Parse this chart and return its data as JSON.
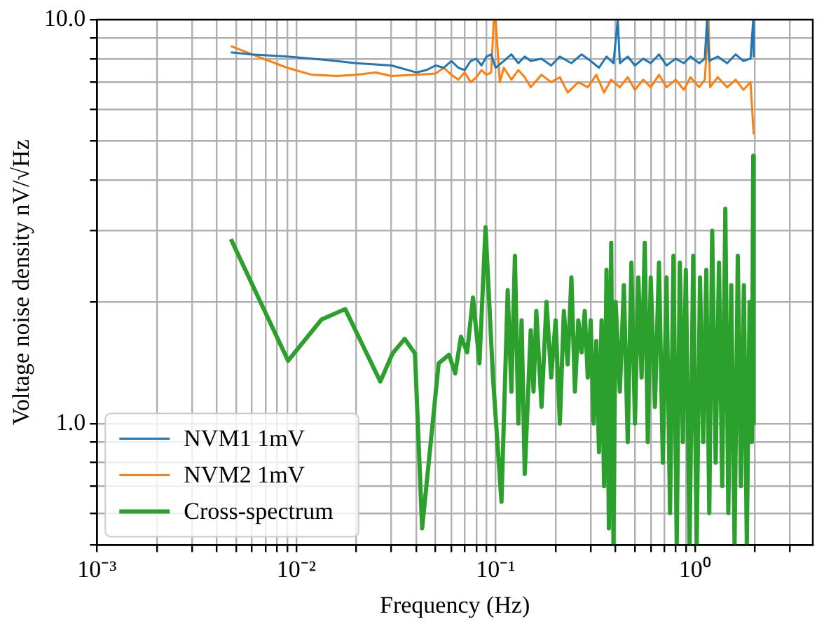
{
  "chart_data": {
    "type": "line",
    "xlabel": "Frequency (Hz)",
    "ylabel": "Voltage noise density nV/√Hz",
    "log": "xy",
    "grid": true,
    "legend": "bottom left",
    "marker": "none",
    "line_style": "solid",
    "xlim": [
      0.001,
      3.9
    ],
    "ylim": [
      0.5,
      10
    ],
    "xticks": [
      {
        "value": 0.001,
        "label": "10⁻³"
      },
      {
        "value": 0.002,
        "label": null
      },
      {
        "value": 0.003,
        "label": null
      },
      {
        "value": 0.004,
        "label": null
      },
      {
        "value": 0.005,
        "label": null
      },
      {
        "value": 0.006,
        "label": null
      },
      {
        "value": 0.007,
        "label": null
      },
      {
        "value": 0.008,
        "label": null
      },
      {
        "value": 0.009,
        "label": null
      },
      {
        "value": 0.01,
        "label": "10⁻²"
      },
      {
        "value": 0.02,
        "label": null
      },
      {
        "value": 0.03,
        "label": null
      },
      {
        "value": 0.04,
        "label": null
      },
      {
        "value": 0.05,
        "label": null
      },
      {
        "value": 0.06,
        "label": null
      },
      {
        "value": 0.07,
        "label": null
      },
      {
        "value": 0.08,
        "label": null
      },
      {
        "value": 0.09,
        "label": null
      },
      {
        "value": 0.1,
        "label": "10⁻¹"
      },
      {
        "value": 0.2,
        "label": null
      },
      {
        "value": 0.3,
        "label": null
      },
      {
        "value": 0.4,
        "label": null
      },
      {
        "value": 0.5,
        "label": null
      },
      {
        "value": 0.6,
        "label": null
      },
      {
        "value": 0.7,
        "label": null
      },
      {
        "value": 0.8,
        "label": null
      },
      {
        "value": 0.9,
        "label": null
      },
      {
        "value": 1,
        "label": "10⁰"
      },
      {
        "value": 2,
        "label": null
      },
      {
        "value": 3,
        "label": null
      }
    ],
    "yticks": [
      {
        "value": 0.5,
        "label": null
      },
      {
        "value": 0.6,
        "label": null
      },
      {
        "value": 0.7,
        "label": null
      },
      {
        "value": 0.8,
        "label": null
      },
      {
        "value": 0.9,
        "label": null
      },
      {
        "value": 1,
        "label": "1.0"
      },
      {
        "value": 2,
        "label": null
      },
      {
        "value": 3,
        "label": null
      },
      {
        "value": 4,
        "label": null
      },
      {
        "value": 5,
        "label": null
      },
      {
        "value": 6,
        "label": null
      },
      {
        "value": 7,
        "label": null
      },
      {
        "value": 8,
        "label": null
      },
      {
        "value": 9,
        "label": null
      },
      {
        "value": 10,
        "label": "10.0"
      }
    ],
    "series": [
      {
        "name": "NVM1 1mV",
        "color": "#1f77b4",
        "x": [
          0.0047,
          0.006,
          0.009,
          0.014,
          0.02,
          0.03,
          0.04,
          0.045,
          0.05,
          0.055,
          0.06,
          0.065,
          0.07,
          0.075,
          0.08,
          0.085,
          0.09,
          0.095,
          0.1,
          0.11,
          0.12,
          0.13,
          0.14,
          0.15,
          0.17,
          0.19,
          0.21,
          0.24,
          0.27,
          0.3,
          0.33,
          0.36,
          0.39,
          0.41,
          0.42,
          0.46,
          0.5,
          0.55,
          0.6,
          0.66,
          0.72,
          0.8,
          0.88,
          0.95,
          1.05,
          1.12,
          1.15,
          1.18,
          1.3,
          1.45,
          1.6,
          1.75,
          1.9,
          1.96,
          1.97
        ],
        "values": [
          8.3,
          8.2,
          8.1,
          7.95,
          7.8,
          7.7,
          7.4,
          7.5,
          7.7,
          7.6,
          7.9,
          7.6,
          7.5,
          7.9,
          8.0,
          7.7,
          8.1,
          8.2,
          7.6,
          7.9,
          8.2,
          7.8,
          8.1,
          7.9,
          8.0,
          7.7,
          8.1,
          7.8,
          8.2,
          7.9,
          7.6,
          8.1,
          7.8,
          10,
          7.8,
          8.1,
          7.7,
          8.0,
          7.8,
          8.2,
          7.7,
          8.0,
          7.8,
          8.1,
          7.8,
          8.0,
          10,
          7.9,
          8.1,
          7.8,
          8.2,
          7.9,
          8.0,
          10,
          8.1
        ]
      },
      {
        "name": "NVM2 1mV",
        "color": "#ff7f0e",
        "x": [
          0.0047,
          0.006,
          0.009,
          0.012,
          0.016,
          0.02,
          0.025,
          0.03,
          0.04,
          0.05,
          0.055,
          0.06,
          0.065,
          0.07,
          0.075,
          0.08,
          0.085,
          0.09,
          0.095,
          0.098,
          0.1,
          0.105,
          0.11,
          0.12,
          0.13,
          0.14,
          0.15,
          0.17,
          0.19,
          0.21,
          0.23,
          0.26,
          0.29,
          0.32,
          0.35,
          0.38,
          0.42,
          0.46,
          0.5,
          0.55,
          0.6,
          0.66,
          0.72,
          0.8,
          0.88,
          0.95,
          1.05,
          1.12,
          1.17,
          1.19,
          1.3,
          1.45,
          1.6,
          1.75,
          1.9,
          1.97
        ],
        "values": [
          8.6,
          8.2,
          7.6,
          7.3,
          7.25,
          7.3,
          7.4,
          7.25,
          7.3,
          7.35,
          7.6,
          7.3,
          7.1,
          7.4,
          7.0,
          7.2,
          7.5,
          7.3,
          7.4,
          10,
          10,
          7.0,
          7.6,
          7.1,
          7.5,
          7.2,
          6.8,
          7.3,
          7.0,
          7.2,
          6.6,
          7.0,
          6.8,
          7.3,
          6.6,
          7.1,
          6.8,
          7.2,
          6.7,
          7.1,
          6.8,
          7.3,
          6.8,
          7.1,
          6.7,
          7.2,
          6.8,
          7.1,
          10,
          6.8,
          7.2,
          6.8,
          7.1,
          6.7,
          7.0,
          5.2
        ]
      },
      {
        "name": "Cross-spectrum",
        "color": "#2ca02c",
        "x": [
          0.0047,
          0.0091,
          0.0134,
          0.0176,
          0.0264,
          0.0304,
          0.035,
          0.0394,
          0.0428,
          0.0518,
          0.0584,
          0.0627,
          0.067,
          0.072,
          0.077,
          0.083,
          0.089,
          0.097,
          0.107,
          0.115,
          0.12,
          0.125,
          0.13,
          0.135,
          0.14,
          0.15,
          0.155,
          0.16,
          0.17,
          0.18,
          0.19,
          0.2,
          0.21,
          0.22,
          0.23,
          0.24,
          0.25,
          0.26,
          0.27,
          0.28,
          0.29,
          0.3,
          0.31,
          0.32,
          0.33,
          0.34,
          0.35,
          0.36,
          0.37,
          0.38,
          0.39,
          0.4,
          0.42,
          0.44,
          0.46,
          0.48,
          0.5,
          0.52,
          0.54,
          0.56,
          0.58,
          0.6,
          0.63,
          0.66,
          0.69,
          0.72,
          0.75,
          0.78,
          0.81,
          0.84,
          0.87,
          0.9,
          0.94,
          0.98,
          1.02,
          1.06,
          1.1,
          1.14,
          1.18,
          1.22,
          1.27,
          1.32,
          1.37,
          1.42,
          1.47,
          1.52,
          1.58,
          1.64,
          1.7,
          1.76,
          1.82,
          1.88,
          1.93,
          1.96,
          1.97
        ],
        "values": [
          2.86,
          1.43,
          1.81,
          1.92,
          1.27,
          1.49,
          1.62,
          1.49,
          0.55,
          1.41,
          1.48,
          1.33,
          1.64,
          1.5,
          2.05,
          1.41,
          3.06,
          1.3,
          0.64,
          2.14,
          1.2,
          2.6,
          1.0,
          1.8,
          0.75,
          1.7,
          1.2,
          1.9,
          1.1,
          2.0,
          1.3,
          1.8,
          1.0,
          1.9,
          1.4,
          2.3,
          1.2,
          1.8,
          1.5,
          1.9,
          1.3,
          1.8,
          1.0,
          1.6,
          0.85,
          1.8,
          0.7,
          2.4,
          0.55,
          2.8,
          0.5,
          2.0,
          1.2,
          2.2,
          0.9,
          2.5,
          1.0,
          2.3,
          1.3,
          2.8,
          0.9,
          2.3,
          1.1,
          2.5,
          0.8,
          2.3,
          0.6,
          2.6,
          0.5,
          2.5,
          0.9,
          2.4,
          0.5,
          2.6,
          0.5,
          2.3,
          0.9,
          2.4,
          0.6,
          3.0,
          0.8,
          2.5,
          0.7,
          3.4,
          0.6,
          2.2,
          0.5,
          2.6,
          0.7,
          2.2,
          0.5,
          2.0,
          0.9,
          4.6,
          1.0
        ]
      }
    ]
  }
}
